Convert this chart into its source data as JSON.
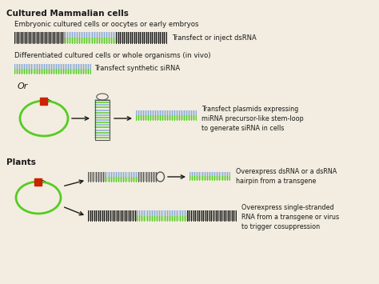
{
  "bg_color": "#f2ede0",
  "title1": "Cultured Mammalian cells",
  "subtitle1": "Embryonic cultured cells or oocytes or early embryos",
  "label1": "Transfect or inject dsRNA",
  "subtitle2": "Differentiated cultured cells or whole organisms (in vivo)",
  "label2": "Transfect synthetic siRNA",
  "label_or": "Or",
  "label3": "Transfect plasmids expressing\nmiRNA precursor-like stem-loop\nto generate siRNA in cells",
  "title2": "Plants",
  "label4": "Overexpress dsRNA or a dsRNA\nhairpin from a transgene",
  "label5": "Overexpress single-stranded\nRNA from a transgene or virus\nto trigger cosuppression",
  "black_color": "#1a1a1a",
  "green_color": "#55cc22",
  "blue_color": "#88aadd",
  "gray_color": "#888888",
  "red_color": "#cc2200",
  "dark_gray": "#555555"
}
